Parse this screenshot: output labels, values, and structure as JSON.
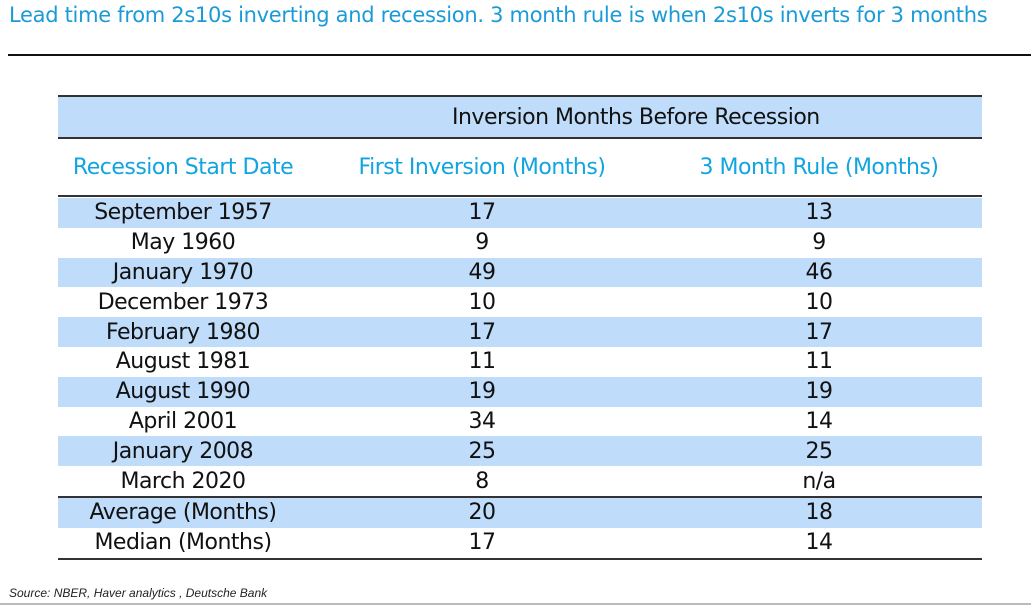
{
  "title": "Lead time from 2s10s inverting and recession. 3 month rule is when 2s10s inverts for 3 months",
  "table": {
    "group_header": "Inversion Months Before Recession",
    "columns": [
      "Recession Start Date",
      "First Inversion (Months)",
      "3 Month Rule (Months)"
    ],
    "rows": [
      [
        "September 1957",
        "17",
        "13"
      ],
      [
        "May 1960",
        "9",
        "9"
      ],
      [
        "January 1970",
        "49",
        "46"
      ],
      [
        "December 1973",
        "10",
        "10"
      ],
      [
        "February 1980",
        "17",
        "17"
      ],
      [
        "August 1981",
        "11",
        "11"
      ],
      [
        "August 1990",
        "19",
        "19"
      ],
      [
        "April 2001",
        "34",
        "14"
      ],
      [
        "January 2008",
        "25",
        "25"
      ],
      [
        "March 2020",
        "8",
        "n/a"
      ]
    ],
    "summary": [
      [
        "Average (Months)",
        "20",
        "18"
      ],
      [
        "Median (Months)",
        "17",
        "14"
      ]
    ],
    "colors": {
      "band": "#bfdcfa",
      "header_text": "#11a5e0",
      "title_text": "#1a9bd7"
    }
  },
  "source": "Source: NBER, Haver analytics , Deutsche Bank"
}
